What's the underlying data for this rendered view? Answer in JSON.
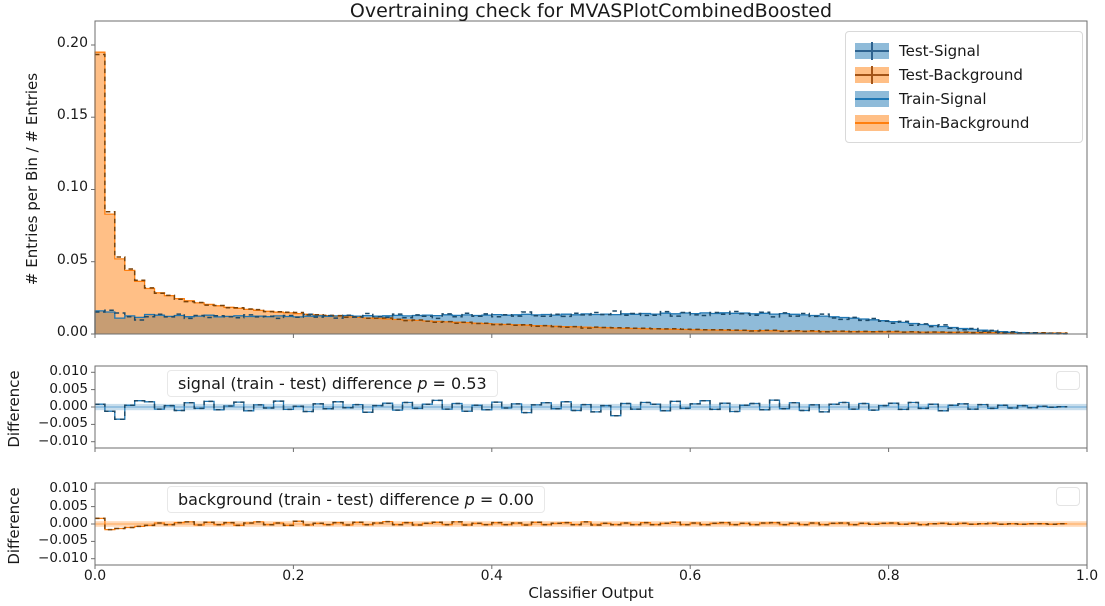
{
  "title": "Overtraining check for MVASPlotCombinedBoosted",
  "xlabel": "Classifier Output",
  "palette": {
    "blue": "#1f77b4",
    "orange": "#ff7f0e",
    "blue_fill": "rgba(31,119,180,0.5)",
    "orange_fill": "rgba(255,127,14,0.5)",
    "test_blue": "#1d4a68",
    "test_orange": "#7a4208",
    "band_blue": "rgba(31,119,180,0.25)",
    "band_orange": "rgba(255,127,14,0.3)",
    "zero_blue": "#85b8db",
    "zero_orange": "#ffb877",
    "spine": "#6e6e6e",
    "text": "#191919"
  },
  "legend": {
    "items": [
      {
        "label": "Test-Signal",
        "style": "errorbar",
        "fill": "rgba(31,119,180,0.5)",
        "marker": "#2d628f"
      },
      {
        "label": "Test-Background",
        "style": "errorbar",
        "fill": "rgba(255,127,14,0.5)",
        "marker": "#a35417"
      },
      {
        "label": "Train-Signal",
        "style": "band-line",
        "fill": "rgba(31,119,180,0.5)",
        "marker": "#1f77b4"
      },
      {
        "label": "Train-Background",
        "style": "band-line",
        "fill": "rgba(255,127,14,0.5)",
        "marker": "#ff7f0e"
      }
    ]
  },
  "annotations": {
    "signal": {
      "prefix": "signal (train - test) difference ",
      "p_symbol": "p",
      "eq_value": " = 0.53",
      "p_value": 0.53
    },
    "background": {
      "prefix": "background (train - test) difference ",
      "p_symbol": "p",
      "eq_value": " = 0.00",
      "p_value": 0.0
    }
  },
  "chart_data": [
    {
      "type": "area",
      "panel": "main",
      "title": "Overtraining check for MVASPlotCombinedBoosted",
      "ylabel": "# Entries per Bin / # Entries",
      "xlim": [
        0.0,
        1.0
      ],
      "ylim": [
        0.0,
        0.2166
      ],
      "yticks": [
        0.0,
        0.05,
        0.1,
        0.15,
        0.2
      ],
      "ytick_labels": [
        "0.00",
        "0.05",
        "0.10",
        "0.15",
        "0.20"
      ],
      "bin_start": 0.0,
      "bin_width": 0.01,
      "n_bins": 100,
      "series": [
        {
          "name": "Train-Signal",
          "values": [
            0.016,
            0.0152,
            0.011,
            0.0125,
            0.0115,
            0.0135,
            0.013,
            0.0122,
            0.0128,
            0.012,
            0.0124,
            0.013,
            0.0118,
            0.0122,
            0.0126,
            0.0121,
            0.0124,
            0.012,
            0.0125,
            0.0121,
            0.0118,
            0.0123,
            0.0126,
            0.0122,
            0.0125,
            0.0128,
            0.0124,
            0.0127,
            0.0123,
            0.0126,
            0.0129,
            0.0125,
            0.0128,
            0.0131,
            0.0127,
            0.0133,
            0.0129,
            0.0132,
            0.0128,
            0.0131,
            0.0134,
            0.013,
            0.0133,
            0.0136,
            0.0132,
            0.0135,
            0.0131,
            0.0137,
            0.0133,
            0.0139,
            0.0135,
            0.0138,
            0.0134,
            0.014,
            0.0136,
            0.0142,
            0.0138,
            0.0144,
            0.014,
            0.0145,
            0.0141,
            0.0146,
            0.0142,
            0.0147,
            0.0143,
            0.0145,
            0.014,
            0.0143,
            0.0138,
            0.0141,
            0.0136,
            0.0132,
            0.0128,
            0.0124,
            0.0119,
            0.0114,
            0.0109,
            0.0104,
            0.0098,
            0.0092,
            0.0086,
            0.008,
            0.0073,
            0.0066,
            0.0059,
            0.0052,
            0.0045,
            0.0038,
            0.0032,
            0.0026,
            0.0021,
            0.0016,
            0.0012,
            0.0009,
            0.0006,
            0.0004,
            0.0003,
            0.0002,
            0,
            0
          ]
        },
        {
          "name": "Train-Background",
          "values": [
            0.195,
            0.083,
            0.052,
            0.044,
            0.0365,
            0.0315,
            0.0285,
            0.0265,
            0.0245,
            0.023,
            0.0215,
            0.0205,
            0.0195,
            0.0185,
            0.0178,
            0.017,
            0.0163,
            0.0157,
            0.0151,
            0.0146,
            0.0141,
            0.0136,
            0.0131,
            0.0127,
            0.0123,
            0.0119,
            0.0115,
            0.0111,
            0.0107,
            0.0104,
            0.01,
            0.0097,
            0.0094,
            0.009,
            0.0087,
            0.0084,
            0.0081,
            0.0078,
            0.0075,
            0.0072,
            0.0069,
            0.0066,
            0.0064,
            0.0061,
            0.0058,
            0.0056,
            0.0053,
            0.0051,
            0.0049,
            0.0047,
            0.0045,
            0.0043,
            0.0041,
            0.0039,
            0.0038,
            0.0036,
            0.0035,
            0.0033,
            0.0032,
            0.0031,
            0.0029,
            0.0028,
            0.0027,
            0.0026,
            0.0025,
            0.0024,
            0.0023,
            0.0023,
            0.0022,
            0.0021,
            0.002,
            0.002,
            0.0019,
            0.0018,
            0.0018,
            0.0017,
            0.0017,
            0.0016,
            0.0016,
            0.0015,
            0.0015,
            0.0014,
            0.0014,
            0.0013,
            0.0013,
            0.0012,
            0.0012,
            0.0011,
            0.0011,
            0.001,
            0.001,
            0.0009,
            0.0009,
            0.0008,
            0.0008,
            0.0007,
            0.0007,
            0.0006,
            0,
            0
          ]
        },
        {
          "name": "Test-Signal",
          "values": [
            0.0152,
            0.0164,
            0.0145,
            0.012,
            0.0097,
            0.012,
            0.0136,
            0.0118,
            0.0138,
            0.0108,
            0.0128,
            0.0114,
            0.0126,
            0.0119,
            0.0112,
            0.0132,
            0.0118,
            0.0123,
            0.0108,
            0.0128,
            0.0116,
            0.0136,
            0.0117,
            0.0127,
            0.011,
            0.013,
            0.0117,
            0.0142,
            0.0119,
            0.0115,
            0.0138,
            0.0112,
            0.0132,
            0.0123,
            0.0108,
            0.0139,
            0.0119,
            0.0144,
            0.0123,
            0.0139,
            0.012,
            0.0133,
            0.0124,
            0.0152,
            0.0126,
            0.0123,
            0.0136,
            0.0122,
            0.0143,
            0.0132,
            0.0149,
            0.0134,
            0.0159,
            0.013,
            0.0142,
            0.0129,
            0.013,
            0.0155,
            0.0124,
            0.0149,
            0.0132,
            0.0128,
            0.0149,
            0.0136,
            0.0156,
            0.014,
            0.013,
            0.0151,
            0.0118,
            0.0146,
            0.0124,
            0.0142,
            0.0122,
            0.0138,
            0.0111,
            0.0101,
            0.0115,
            0.0094,
            0.0107,
            0.0088,
            0.0075,
            0.0087,
            0.006,
            0.007,
            0.0051,
            0.0063,
            0.004,
            0.0029,
            0.0038,
            0.0019,
            0.0025,
            0.0011,
            0.0015,
            0.0005,
            0.0008,
            0.0002,
            0.0004,
            0.0001,
            0,
            0
          ]
        },
        {
          "name": "Test-Background",
          "values": [
            0.1934,
            0.0846,
            0.0533,
            0.045,
            0.0372,
            0.0319,
            0.0282,
            0.0267,
            0.0241,
            0.0224,
            0.0218,
            0.02,
            0.0197,
            0.0181,
            0.0182,
            0.0173,
            0.0169,
            0.0155,
            0.0154,
            0.015,
            0.0149,
            0.0133,
            0.0133,
            0.0129,
            0.0127,
            0.0116,
            0.012,
            0.0109,
            0.011,
            0.0111,
            0.0102,
            0.0093,
            0.0097,
            0.0088,
            0.0082,
            0.0086,
            0.0075,
            0.0081,
            0.0073,
            0.0074,
            0.0065,
            0.0068,
            0.0061,
            0.0064,
            0.0053,
            0.0058,
            0.0051,
            0.0047,
            0.0051,
            0.0041,
            0.0048,
            0.0045,
            0.0043,
            0.0042,
            0.004,
            0.004,
            0.0037,
            0.0035,
            0.0037,
            0.0033,
            0.0032,
            0.003,
            0.0029,
            0.003,
            0.0027,
            0.0026,
            0.0021,
            0.0026,
            0.0026,
            0.0019,
            0.0022,
            0.0018,
            0.0022,
            0.0016,
            0.002,
            0.002,
            0.0015,
            0.0018,
            0.0015,
            0.0017,
            0.0018,
            0.0013,
            0.0016,
            0.0011,
            0.0014,
            0.0014,
            0.0011,
            0.0013,
            0.001,
            0.0011,
            0.0012,
            0.0008,
            0.001,
            0.0007,
            0.0009,
            0.0008,
            0.0006,
            0.0007,
            0,
            0
          ]
        }
      ],
      "legend_entries": [
        "Test-Signal",
        "Test-Background",
        "Train-Signal",
        "Train-Background"
      ],
      "grid": false
    },
    {
      "type": "area",
      "panel": "signal-difference",
      "annotation": "signal (train - test) difference p = 0.53",
      "p_value": 0.53,
      "ylabel": "Difference",
      "xlim": [
        0.0,
        1.0
      ],
      "ylim": [
        -0.0118,
        0.0118
      ],
      "yticks": [
        0.01,
        0.005,
        0.0,
        -0.005,
        -0.01
      ],
      "ytick_labels": [
        "0.010",
        "0.005",
        "0.000",
        "−0.005",
        "−0.010"
      ],
      "bin_start": 0.0,
      "bin_width": 0.01,
      "n_bins": 100,
      "band_half_width": 0.0009,
      "series": [
        {
          "name": "Train minus Test (Signal)",
          "values": [
            0.0008,
            -0.0012,
            -0.0035,
            0.0005,
            0.0018,
            0.0015,
            -0.0006,
            0.0004,
            -0.001,
            0.0012,
            -0.0004,
            0.0016,
            -0.0008,
            0.0003,
            0.0014,
            -0.0011,
            0.0006,
            -0.0003,
            0.0017,
            -0.0007,
            0.0002,
            -0.0013,
            0.0009,
            -0.0005,
            0.0015,
            -0.0002,
            0.0007,
            -0.0015,
            0.0004,
            0.0011,
            -0.0009,
            0.0013,
            -0.0004,
            0.0008,
            0.0019,
            -0.0006,
            0.001,
            -0.0012,
            0.0005,
            -0.0008,
            0.0014,
            -0.0003,
            0.0009,
            -0.0016,
            0.0006,
            0.0012,
            -0.0005,
            0.0015,
            -0.001,
            0.0007,
            -0.0014,
            0.0004,
            -0.0025,
            0.001,
            -0.0006,
            0.0013,
            0.0008,
            -0.0011,
            0.0016,
            -0.0004,
            0.0009,
            0.0018,
            -0.0007,
            0.0011,
            -0.0013,
            0.0005,
            0.001,
            -0.0008,
            0.002,
            -0.0005,
            0.0012,
            -0.001,
            0.0006,
            -0.0014,
            0.0008,
            0.0013,
            -0.0006,
            0.001,
            -0.0009,
            0.0004,
            0.0011,
            -0.0007,
            0.0013,
            -0.0004,
            0.0008,
            -0.0011,
            0.0005,
            0.0009,
            -0.0006,
            0.0007,
            -0.0004,
            0.0005,
            -0.0003,
            0.0004,
            -0.0002,
            0.0002,
            -0.0001,
            0.0001,
            0,
            0
          ]
        }
      ],
      "grid": false
    },
    {
      "type": "area",
      "panel": "background-difference",
      "annotation": "background (train - test) difference p = 0.00",
      "p_value": 0.0,
      "ylabel": "Difference",
      "xlabel": "Classifier Output",
      "xlim": [
        0.0,
        1.0
      ],
      "ylim": [
        -0.0118,
        0.0118
      ],
      "yticks": [
        0.01,
        0.005,
        0.0,
        -0.005,
        -0.01
      ],
      "ytick_labels": [
        "0.010",
        "0.005",
        "0.000",
        "−0.005",
        "−0.010"
      ],
      "xticks": [
        0.0,
        0.2,
        0.4,
        0.6,
        0.8,
        1.0
      ],
      "xtick_labels": [
        "0.0",
        "0.2",
        "0.4",
        "0.6",
        "0.8",
        "1.0"
      ],
      "bin_start": 0.0,
      "bin_width": 0.01,
      "n_bins": 100,
      "band_half_width": 0.0008,
      "series": [
        {
          "name": "Train minus Test (Background)",
          "values": [
            0.0016,
            -0.0016,
            -0.0013,
            -0.001,
            -0.0007,
            -0.0004,
            0.0003,
            -0.0002,
            0.0004,
            0.0006,
            -0.0003,
            0.0005,
            -0.0002,
            0.0004,
            -0.0004,
            0.0003,
            0.0006,
            -0.0002,
            0.0003,
            -0.0004,
            0.0008,
            -0.0003,
            0.0002,
            -0.0002,
            0.0004,
            -0.0003,
            0.0005,
            -0.0002,
            0.0003,
            0.0007,
            -0.0002,
            0.0004,
            -0.0003,
            0.0002,
            0.0005,
            -0.0002,
            0.0006,
            -0.0003,
            0.0002,
            -0.0002,
            0.0004,
            -0.0002,
            0.0003,
            -0.0003,
            0.0005,
            -0.0002,
            0.0002,
            0.0004,
            -0.0002,
            0.0006,
            -0.0003,
            0.0002,
            -0.0002,
            0.0003,
            -0.0002,
            0.0004,
            -0.0002,
            0.0002,
            0.0005,
            -0.0002,
            0.0003,
            -0.0002,
            0.0002,
            0.0004,
            -0.0002,
            0.0002,
            -0.0002,
            0.0003,
            0.0004,
            -0.0002,
            0.0002,
            -0.0002,
            0.0003,
            -0.0002,
            0.0002,
            0.0003,
            -0.0002,
            0.0002,
            -0.0001,
            0.0002,
            0.0003,
            -0.0001,
            0.0002,
            -0.0002,
            0.0001,
            0.0002,
            -0.0001,
            0.0002,
            -0.0001,
            0.0001,
            0.0002,
            -0.0001,
            0.0001,
            -0.0001,
            0.0001,
            0.0001,
            -0.0001,
            0.0001,
            0,
            0
          ]
        }
      ],
      "grid": false
    }
  ]
}
